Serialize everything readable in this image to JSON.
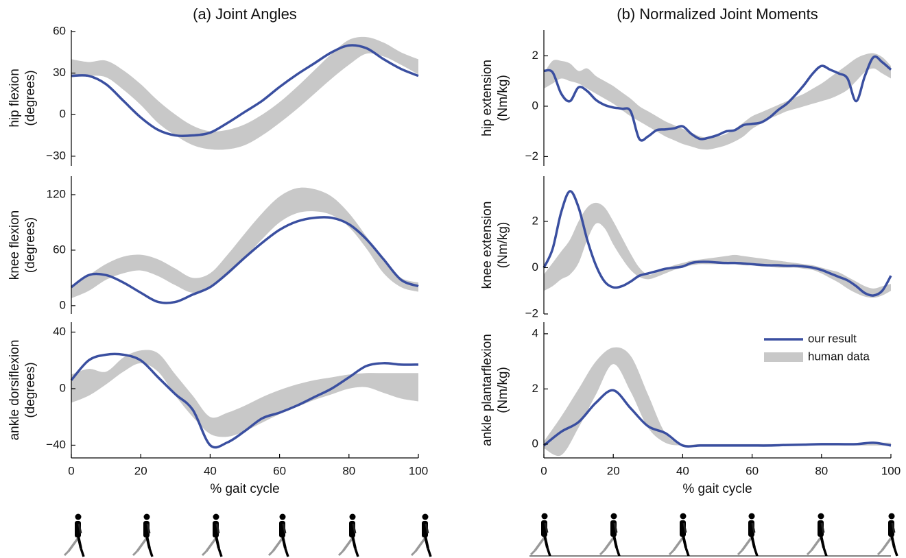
{
  "chart_data": [
    {
      "type": "line",
      "title": "(a) Joint Angles",
      "ylabel": [
        "hip flexion",
        "(degrees)"
      ],
      "x": [
        0,
        5,
        10,
        15,
        20,
        25,
        30,
        35,
        40,
        45,
        50,
        55,
        60,
        65,
        70,
        75,
        80,
        85,
        90,
        95,
        100
      ],
      "xlim": [
        0,
        100
      ],
      "ylim": [
        -37,
        61
      ],
      "yticks": [
        {
          "value": -30,
          "label": "−30"
        },
        0,
        30,
        60
      ],
      "series": [
        {
          "color": "#3a4fa0",
          "values": [
            28,
            28,
            22,
            10,
            -2,
            -11,
            -15,
            -15,
            -13,
            -6,
            2,
            10,
            20,
            29,
            37,
            45,
            50,
            48,
            40,
            33,
            28
          ]
        },
        {
          "type": "band",
          "color": "#c8c8c8",
          "upper": [
            40,
            38,
            39,
            32,
            22,
            10,
            0,
            -8,
            -12,
            -11,
            -7,
            0,
            9,
            20,
            32,
            44,
            54,
            56,
            52,
            45,
            40
          ],
          "lower": [
            27,
            28,
            27,
            18,
            7,
            -6,
            -15,
            -22,
            -25,
            -25,
            -22,
            -15,
            -6,
            4,
            15,
            26,
            36,
            44,
            42,
            36,
            29
          ]
        }
      ]
    },
    {
      "type": "line",
      "ylabel": [
        "knee flexion",
        "(degrees)"
      ],
      "x": [
        0,
        5,
        10,
        15,
        20,
        25,
        30,
        35,
        40,
        45,
        50,
        55,
        60,
        65,
        70,
        75,
        80,
        85,
        90,
        95,
        100
      ],
      "xlim": [
        0,
        100
      ],
      "ylim": [
        -9,
        140
      ],
      "yticks": [
        0,
        60,
        120
      ],
      "series": [
        {
          "color": "#3a4fa0",
          "values": [
            20,
            33,
            33,
            25,
            14,
            4,
            4,
            12,
            20,
            35,
            52,
            68,
            82,
            91,
            95,
            95,
            88,
            72,
            50,
            28,
            21
          ]
        },
        {
          "type": "band",
          "color": "#c8c8c8",
          "upper": [
            22,
            33,
            45,
            53,
            55,
            50,
            40,
            30,
            35,
            55,
            78,
            100,
            118,
            127,
            126,
            118,
            100,
            75,
            48,
            30,
            25
          ],
          "lower": [
            8,
            16,
            28,
            35,
            38,
            32,
            22,
            14,
            20,
            33,
            52,
            72,
            90,
            100,
            102,
            98,
            85,
            62,
            35,
            20,
            15
          ]
        }
      ]
    },
    {
      "type": "line",
      "ylabel": [
        "ankle dorsiflexion",
        "(degrees)"
      ],
      "xlabel": "% gait cycle",
      "x": [
        0,
        5,
        10,
        15,
        20,
        25,
        30,
        35,
        40,
        45,
        50,
        55,
        60,
        65,
        70,
        75,
        80,
        85,
        90,
        95,
        100
      ],
      "xlim": [
        0,
        100
      ],
      "ylim": [
        -49,
        47
      ],
      "xticks": [
        0,
        20,
        40,
        60,
        80,
        100
      ],
      "yticks": [
        {
          "value": -40,
          "label": "−40"
        },
        0,
        40
      ],
      "series": [
        {
          "color": "#3a4fa0",
          "values": [
            6,
            20,
            24,
            24,
            20,
            8,
            -4,
            -15,
            -40,
            -38,
            -30,
            -21,
            -17,
            -12,
            -6,
            0,
            8,
            16,
            18,
            17,
            17
          ]
        },
        {
          "type": "band",
          "color": "#c8c8c8",
          "upper": [
            10,
            14,
            12,
            22,
            27,
            25,
            10,
            -5,
            -20,
            -17,
            -12,
            -6,
            -1,
            3,
            6,
            8,
            10,
            11,
            11,
            11,
            11
          ],
          "lower": [
            -10,
            -5,
            3,
            12,
            18,
            12,
            -5,
            -20,
            -32,
            -34,
            -30,
            -24,
            -18,
            -13,
            -8,
            -4,
            0,
            1,
            -3,
            -7,
            -9
          ]
        }
      ]
    },
    {
      "type": "line",
      "title": "(b) Normalized Joint Moments",
      "ylabel": [
        "hip extension",
        "(Nm/kg)"
      ],
      "x": [
        0,
        2.5,
        5,
        7.5,
        10,
        12.5,
        15,
        17.5,
        20,
        22.5,
        25,
        27.5,
        30,
        32.5,
        35,
        37.5,
        40,
        42.5,
        45,
        47.5,
        50,
        52.5,
        55,
        57.5,
        60,
        62.5,
        65,
        67.5,
        70,
        72.5,
        75,
        77.5,
        80,
        82.5,
        85,
        87.5,
        90,
        92.5,
        95,
        97.5,
        100
      ],
      "xlim": [
        0,
        100
      ],
      "ylim": [
        -2.37,
        3.02
      ],
      "yticks": [
        {
          "value": -2,
          "label": "−2"
        },
        0,
        2
      ],
      "series": [
        {
          "color": "#3a4fa0",
          "values": [
            1.4,
            1.35,
            0.5,
            0.2,
            0.75,
            0.6,
            0.25,
            0.05,
            -0.05,
            -0.1,
            -0.2,
            -1.3,
            -1.2,
            -0.95,
            -0.92,
            -0.88,
            -0.8,
            -1.1,
            -1.3,
            -1.25,
            -1.15,
            -1.0,
            -0.95,
            -0.75,
            -0.7,
            -0.65,
            -0.45,
            -0.15,
            0.1,
            0.45,
            0.85,
            1.3,
            1.6,
            1.45,
            1.3,
            1.1,
            0.2,
            1.2,
            1.95,
            1.75,
            1.45
          ]
        },
        {
          "type": "band",
          "color": "#c8c8c8",
          "upper": [
            1.3,
            1.8,
            1.8,
            1.7,
            1.4,
            1.5,
            1.2,
            1.0,
            0.8,
            0.55,
            0.3,
            0.0,
            -0.2,
            -0.4,
            -0.6,
            -0.75,
            -0.9,
            -1.05,
            -1.2,
            -1.25,
            -1.2,
            -1.1,
            -0.9,
            -0.65,
            -0.4,
            -0.25,
            -0.1,
            0.05,
            0.2,
            0.35,
            0.5,
            0.7,
            0.9,
            1.15,
            1.4,
            1.65,
            1.9,
            2.05,
            2.1,
            1.95,
            1.6
          ],
          "lower": [
            0.7,
            0.9,
            1.1,
            1.0,
            0.9,
            0.7,
            0.5,
            0.3,
            0.1,
            -0.15,
            -0.4,
            -0.6,
            -0.8,
            -1.0,
            -1.2,
            -1.35,
            -1.5,
            -1.6,
            -1.7,
            -1.72,
            -1.65,
            -1.55,
            -1.4,
            -1.2,
            -0.9,
            -0.7,
            -0.5,
            -0.35,
            -0.2,
            -0.1,
            0.0,
            0.1,
            0.2,
            0.3,
            0.45,
            0.65,
            1.0,
            1.35,
            1.5,
            1.3,
            1.1
          ]
        }
      ]
    },
    {
      "type": "line",
      "ylabel": [
        "knee extension",
        "(Nm/kg)"
      ],
      "x": [
        0,
        2.5,
        5,
        7.5,
        10,
        12.5,
        15,
        17.5,
        20,
        22.5,
        25,
        27.5,
        30,
        32.5,
        35,
        37.5,
        40,
        42.5,
        45,
        47.5,
        50,
        52.5,
        55,
        57.5,
        60,
        62.5,
        65,
        67.5,
        70,
        72.5,
        75,
        77.5,
        80,
        82.5,
        85,
        87.5,
        90,
        92.5,
        95,
        97.5,
        100
      ],
      "xlim": [
        0,
        100
      ],
      "ylim": [
        -2,
        3.95
      ],
      "yticks": [
        {
          "value": -2,
          "label": "−2"
        },
        0,
        2
      ],
      "series": [
        {
          "color": "#3a4fa0",
          "values": [
            0,
            0.8,
            2.4,
            3.3,
            2.6,
            1.2,
            0.1,
            -0.6,
            -0.85,
            -0.8,
            -0.6,
            -0.35,
            -0.25,
            -0.15,
            -0.05,
            0.0,
            0.05,
            0.2,
            0.25,
            0.25,
            0.22,
            0.2,
            0.2,
            0.18,
            0.15,
            0.12,
            0.1,
            0.1,
            0.08,
            0.08,
            0.05,
            0.0,
            -0.1,
            -0.25,
            -0.4,
            -0.55,
            -0.8,
            -1.1,
            -1.2,
            -1.0,
            -0.35
          ]
        },
        {
          "type": "band",
          "color": "#c8c8c8",
          "upper": [
            -0.3,
            0.2,
            0.7,
            1.2,
            2.0,
            2.6,
            2.8,
            2.6,
            2.0,
            1.3,
            0.6,
            0.0,
            -0.3,
            -0.2,
            -0.05,
            0.1,
            0.2,
            0.3,
            0.35,
            0.4,
            0.45,
            0.5,
            0.55,
            0.5,
            0.45,
            0.4,
            0.35,
            0.3,
            0.25,
            0.2,
            0.15,
            0.1,
            0.0,
            -0.1,
            -0.2,
            -0.4,
            -0.6,
            -0.8,
            -0.9,
            -0.8,
            -0.7
          ],
          "lower": [
            -1.0,
            -0.8,
            -0.5,
            -0.3,
            0.2,
            1.2,
            1.9,
            1.7,
            1.0,
            0.4,
            -0.1,
            -0.4,
            -0.5,
            -0.4,
            -0.25,
            -0.1,
            0.0,
            0.1,
            0.15,
            0.15,
            0.15,
            0.15,
            0.15,
            0.1,
            0.1,
            0.05,
            0.05,
            0.0,
            0.0,
            0.0,
            -0.05,
            -0.1,
            -0.25,
            -0.45,
            -0.65,
            -0.9,
            -1.1,
            -1.25,
            -1.3,
            -1.2,
            -1.0
          ]
        }
      ]
    },
    {
      "type": "line",
      "ylabel": [
        "ankle plantarflexion",
        "(Nm/kg)"
      ],
      "xlabel": "% gait cycle",
      "x": [
        0,
        5,
        10,
        15,
        20,
        25,
        30,
        35,
        40,
        45,
        50,
        55,
        60,
        65,
        70,
        75,
        80,
        85,
        90,
        95,
        100
      ],
      "xlim": [
        0,
        100
      ],
      "ylim": [
        -0.5,
        4.42
      ],
      "xticks": [
        0,
        20,
        40,
        60,
        80,
        100
      ],
      "yticks": [
        0,
        2,
        4
      ],
      "legend": "upper right",
      "series": [
        {
          "name": "our result",
          "color": "#3a4fa0",
          "values": [
            -0.05,
            0.45,
            0.8,
            1.5,
            1.95,
            1.3,
            0.65,
            0.4,
            -0.05,
            -0.05,
            -0.05,
            -0.05,
            -0.05,
            -0.05,
            -0.03,
            -0.02,
            0.0,
            0.0,
            0.0,
            0.05,
            -0.05
          ]
        },
        {
          "name": "human data",
          "type": "band",
          "color": "#c8c8c8",
          "upper": [
            0.1,
            1.0,
            2.0,
            3.0,
            3.5,
            3.2,
            1.8,
            0.4,
            0.0,
            0.0,
            0.0,
            0.0,
            0.0,
            0.0,
            0.0,
            0.0,
            0.02,
            0.03,
            0.03,
            0.05,
            0.05
          ],
          "lower": [
            -0.15,
            -0.4,
            0.6,
            1.8,
            2.9,
            1.9,
            0.6,
            0.05,
            -0.05,
            -0.05,
            -0.05,
            -0.05,
            -0.05,
            -0.05,
            -0.05,
            -0.05,
            -0.05,
            -0.05,
            -0.05,
            -0.05,
            -0.05
          ]
        }
      ]
    }
  ]
}
